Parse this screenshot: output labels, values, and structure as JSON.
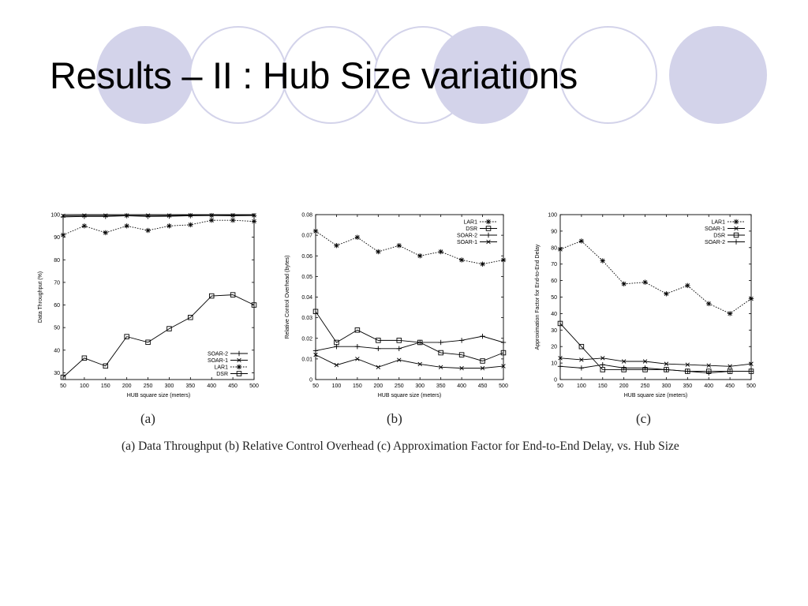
{
  "slide": {
    "title": "Results – II : Hub Size variations",
    "caption": "(a) Data Throughput (b) Relative Control Overhead (c) Approximation Factor for End-to-End Delay, vs. Hub Size",
    "panel_labels": [
      "(a)",
      "(b)",
      "(c)"
    ]
  },
  "chart_data": [
    {
      "type": "line",
      "panel": "(a)",
      "xlabel": "HUB square size (meters)",
      "ylabel": "Data Throughput (%)",
      "xlim": [
        50,
        500
      ],
      "ylim": [
        27,
        100
      ],
      "x": [
        50,
        100,
        150,
        200,
        250,
        300,
        350,
        400,
        450,
        500
      ],
      "xticks": [
        50,
        100,
        150,
        200,
        250,
        300,
        350,
        400,
        450,
        500
      ],
      "yticks": [
        30,
        40,
        50,
        60,
        70,
        80,
        90,
        100
      ],
      "legend_position": "bottom-right",
      "series": [
        {
          "name": "SOAR-2",
          "marker": "plus",
          "dash": "solid",
          "values": [
            99,
            99.2,
            99.2,
            99.5,
            99.2,
            99.3,
            99.5,
            99.6,
            99.5,
            99.6
          ]
        },
        {
          "name": "SOAR-1",
          "marker": "x",
          "dash": "solid",
          "values": [
            99.5,
            99.6,
            99.6,
            99.6,
            99.6,
            99.6,
            99.7,
            99.7,
            99.7,
            99.7
          ]
        },
        {
          "name": "LAR1",
          "marker": "star",
          "dash": "dotted",
          "values": [
            91,
            95,
            92,
            95,
            93,
            95,
            95.5,
            97.5,
            97.5,
            97
          ]
        },
        {
          "name": "DSR",
          "marker": "square",
          "dash": "solid",
          "values": [
            28,
            36.5,
            33,
            46,
            43.5,
            49.5,
            54.5,
            64,
            64.5,
            60
          ]
        }
      ]
    },
    {
      "type": "line",
      "panel": "(b)",
      "xlabel": "HUB square size (meters)",
      "ylabel": "Relative Control Overhead (bytes)",
      "xlim": [
        50,
        500
      ],
      "ylim": [
        0,
        0.08
      ],
      "x": [
        50,
        100,
        150,
        200,
        250,
        300,
        350,
        400,
        450,
        500
      ],
      "xticks": [
        50,
        100,
        150,
        200,
        250,
        300,
        350,
        400,
        450,
        500
      ],
      "yticks": [
        0,
        0.01,
        0.02,
        0.03,
        0.04,
        0.05,
        0.06,
        0.07,
        0.08
      ],
      "legend_position": "top-right",
      "series": [
        {
          "name": "LAR1",
          "marker": "star",
          "dash": "dotted",
          "values": [
            0.072,
            0.065,
            0.069,
            0.062,
            0.065,
            0.06,
            0.062,
            0.058,
            0.056,
            0.058
          ]
        },
        {
          "name": "DSR",
          "marker": "square",
          "dash": "solid",
          "values": [
            0.033,
            0.018,
            0.024,
            0.019,
            0.019,
            0.018,
            0.013,
            0.012,
            0.009,
            0.013
          ]
        },
        {
          "name": "SOAR-2",
          "marker": "plus",
          "dash": "solid",
          "values": [
            0.014,
            0.016,
            0.016,
            0.015,
            0.015,
            0.018,
            0.018,
            0.019,
            0.021,
            0.018
          ]
        },
        {
          "name": "SOAR-1",
          "marker": "x",
          "dash": "solid",
          "values": [
            0.012,
            0.007,
            0.01,
            0.006,
            0.0095,
            0.0075,
            0.006,
            0.0055,
            0.0055,
            0.0065
          ]
        }
      ]
    },
    {
      "type": "line",
      "panel": "(c)",
      "xlabel": "HUB square size (meters)",
      "ylabel": "Approximation Factor for End-to-End Delay",
      "xlim": [
        50,
        500
      ],
      "ylim": [
        0,
        100
      ],
      "x": [
        50,
        100,
        150,
        200,
        250,
        300,
        350,
        400,
        450,
        500
      ],
      "xticks": [
        50,
        100,
        150,
        200,
        250,
        300,
        350,
        400,
        450,
        500
      ],
      "yticks": [
        0,
        10,
        20,
        30,
        40,
        50,
        60,
        70,
        80,
        90,
        100
      ],
      "legend_position": "top-right",
      "series": [
        {
          "name": "LAR1",
          "marker": "star",
          "dash": "dotted",
          "values": [
            79,
            84,
            72,
            58,
            59,
            52,
            57,
            46,
            40,
            49
          ]
        },
        {
          "name": "SOAR-1",
          "marker": "x",
          "dash": "solid",
          "values": [
            13,
            12,
            13,
            11,
            11,
            9.5,
            9,
            8.5,
            8,
            9.5
          ]
        },
        {
          "name": "DSR",
          "marker": "square",
          "dash": "solid",
          "values": [
            34,
            20,
            6,
            6,
            6,
            6,
            5,
            5,
            5,
            5
          ]
        },
        {
          "name": "SOAR-2",
          "marker": "plus",
          "dash": "solid",
          "values": [
            8,
            7,
            9,
            7,
            7,
            6,
            5,
            4,
            5,
            5
          ]
        }
      ]
    }
  ]
}
